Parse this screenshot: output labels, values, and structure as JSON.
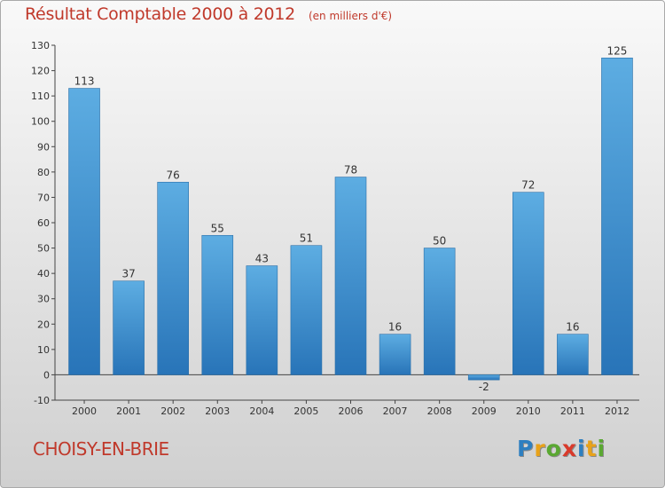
{
  "title": "Résultat Comptable 2000 à 2012",
  "unit": "(en milliers d'€)",
  "commune": "CHOISY-EN-BRIE",
  "logo": {
    "text": "Proxiti",
    "letters": [
      {
        "ch": "P",
        "color": "#2e7fc0"
      },
      {
        "ch": "r",
        "color": "#e8a21a"
      },
      {
        "ch": "o",
        "color": "#5aa832"
      },
      {
        "ch": "x",
        "color": "#d93a2b"
      },
      {
        "ch": "i",
        "color": "#2e7fc0"
      },
      {
        "ch": "t",
        "color": "#e8a21a"
      },
      {
        "ch": "i",
        "color": "#5aa832"
      }
    ]
  },
  "colors": {
    "bar_light": "#5dade2",
    "bar_dark": "#2874b8",
    "text_red": "#c0392b"
  },
  "chart_data": {
    "type": "bar",
    "title": "Résultat Comptable 2000 à 2012",
    "subtitle": "(en milliers d'€)",
    "categories": [
      "2000",
      "2001",
      "2002",
      "2003",
      "2004",
      "2005",
      "2006",
      "2007",
      "2008",
      "2009",
      "2010",
      "2011",
      "2012"
    ],
    "values": [
      113,
      37,
      76,
      55,
      43,
      51,
      78,
      16,
      50,
      -2,
      72,
      16,
      125
    ],
    "data_labels": [
      "113",
      "37",
      "76",
      "55",
      "43",
      "51",
      "78",
      "16",
      "50",
      "-2",
      "72",
      "16",
      "125"
    ],
    "ylim": [
      -10,
      130
    ],
    "yticks": [
      -10,
      0,
      10,
      20,
      30,
      40,
      50,
      60,
      70,
      80,
      90,
      100,
      110,
      120,
      130
    ],
    "grid": false,
    "xlabel": "",
    "ylabel": ""
  }
}
